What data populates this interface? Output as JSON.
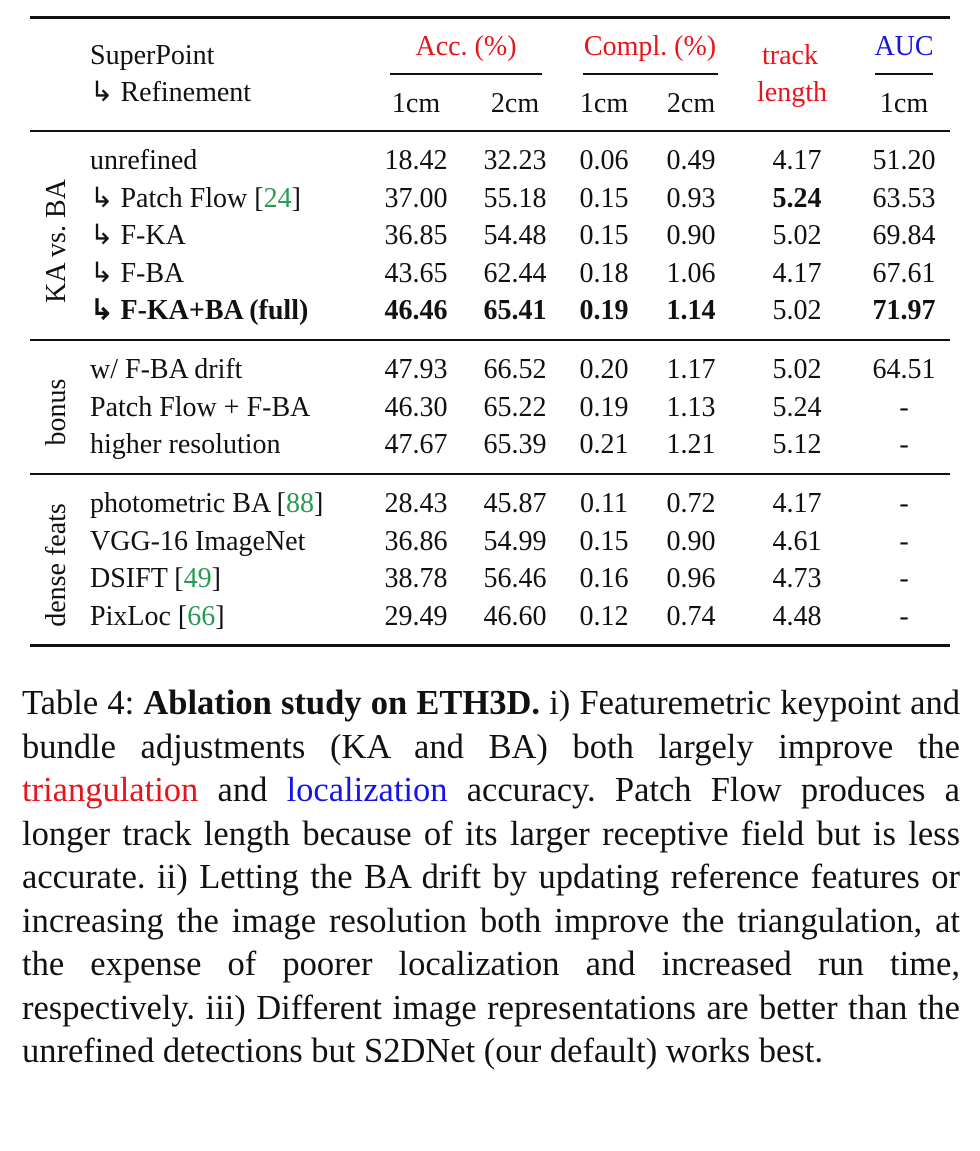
{
  "header": {
    "col0_line1": "SuperPoint",
    "col0_line2": "↳ Refinement",
    "acc": "Acc. (%)",
    "compl": "Compl. (%)",
    "track_line1": "track",
    "track_line2": "length",
    "auc": "AUC",
    "sub": [
      "1cm",
      "2cm",
      "1cm",
      "2cm",
      "1cm"
    ]
  },
  "colors": {
    "triangulation": "#e8141c",
    "localization": "#1414e6",
    "citation": "#2a9a55"
  },
  "groups": [
    {
      "label": "KA vs. BA",
      "rows": [
        {
          "label": "unrefined",
          "values": [
            "18.42",
            "32.23",
            "0.06",
            "0.49",
            "4.17",
            "51.20"
          ],
          "bold": []
        },
        {
          "label": "↳ Patch Flow ",
          "cite": "24",
          "values": [
            "37.00",
            "55.18",
            "0.15",
            "0.93",
            "5.24",
            "63.53"
          ],
          "bold": [
            4
          ]
        },
        {
          "label": "↳ F-KA",
          "values": [
            "36.85",
            "54.48",
            "0.15",
            "0.90",
            "5.02",
            "69.84"
          ],
          "bold": []
        },
        {
          "label": "↳ F-BA",
          "values": [
            "43.65",
            "62.44",
            "0.18",
            "1.06",
            "4.17",
            "67.61"
          ],
          "bold": []
        },
        {
          "label": "↳ F-KA+BA (full)",
          "label_bold": true,
          "values": [
            "46.46",
            "65.41",
            "0.19",
            "1.14",
            "5.02",
            "71.97"
          ],
          "bold": [
            0,
            1,
            2,
            3,
            5
          ]
        }
      ]
    },
    {
      "label": "bonus",
      "rows": [
        {
          "label": "w/ F-BA drift",
          "values": [
            "47.93",
            "66.52",
            "0.20",
            "1.17",
            "5.02",
            "64.51"
          ],
          "bold": []
        },
        {
          "label": "Patch Flow + F-BA",
          "values": [
            "46.30",
            "65.22",
            "0.19",
            "1.13",
            "5.24",
            "-"
          ],
          "bold": []
        },
        {
          "label": "higher resolution",
          "values": [
            "47.67",
            "65.39",
            "0.21",
            "1.21",
            "5.12",
            "-"
          ],
          "bold": []
        }
      ]
    },
    {
      "label": "dense feats",
      "rows": [
        {
          "label": "photometric BA ",
          "cite": "88",
          "values": [
            "28.43",
            "45.87",
            "0.11",
            "0.72",
            "4.17",
            "-"
          ],
          "bold": []
        },
        {
          "label": "VGG-16 ImageNet",
          "values": [
            "36.86",
            "54.99",
            "0.15",
            "0.90",
            "4.61",
            "-"
          ],
          "bold": []
        },
        {
          "label": "DSIFT ",
          "cite": "49",
          "values": [
            "38.78",
            "56.46",
            "0.16",
            "0.96",
            "4.73",
            "-"
          ],
          "bold": []
        },
        {
          "label": "PixLoc ",
          "cite": "66",
          "values": [
            "29.49",
            "46.60",
            "0.12",
            "0.74",
            "4.48",
            "-"
          ],
          "bold": []
        }
      ]
    }
  ],
  "caption": {
    "prefix": "Table 4: ",
    "title": "Ablation study on ETH3D.",
    "t1": " i) Featuremetric key­point and bundle adjustments (KA and BA) both largely improve the ",
    "tri": "triangulation",
    "t2": " and ",
    "loc": "localization",
    "t3": " accuracy. Patch Flow produces a longer track length because of its larger receptive field but is less accurate. ii) Letting the BA drift by updating reference features or increasing the image resolu­tion both improve the triangulation, at the expense of poorer localization and increased run time, respectively. iii) Dif­ferent image representations are better than the unrefined detections but S2DNet (our default) works best."
  }
}
